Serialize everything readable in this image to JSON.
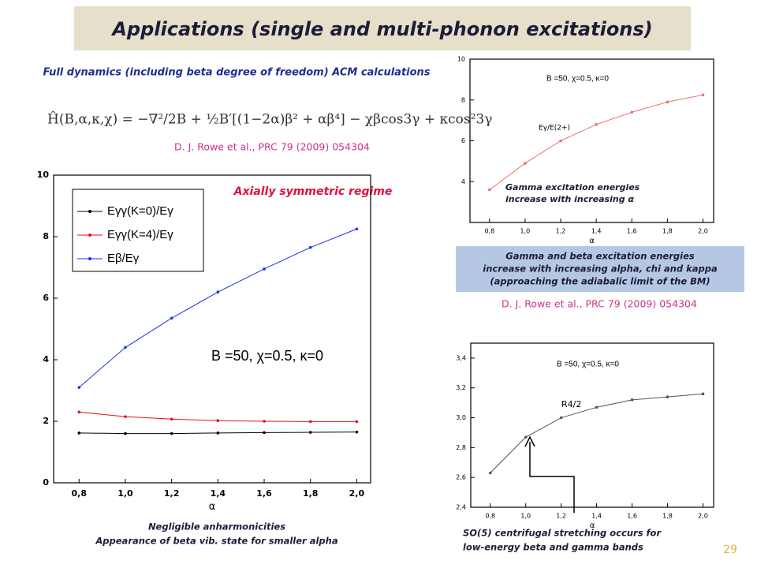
{
  "title": "Applications (single and multi-phonon excitations)",
  "subtitle": "Full dynamics (including beta degree of freedom) ACM calculations",
  "formula": "Ĥ(B,α,κ,χ) = −∇²/2B + ½B′[(1−2α)β² + αβ⁴] − χβcos3γ + κcos²3γ",
  "reference_1": "D. J. Rowe et al., PRC 79  (2009) 054304",
  "regime": "Axially symmetric regime",
  "note_box": [
    "Gamma and  beta excitation energies",
    "increase with increasing  alpha, chi and kappa",
    "(approaching the adiabalic limit of the BM)"
  ],
  "reference_2": "D. J. Rowe et al., PRC 79  (2009) 054304",
  "caption_left": [
    "Negligible  anharmonicities",
    "Appearance of beta vib. state for smaller alpha"
  ],
  "caption_right": [
    "SO(5) centrifugal stretching occurs for",
    "low-energy beta and gamma bands"
  ],
  "page_number": "29",
  "chart_data": [
    {
      "type": "line",
      "xlabel": "α",
      "annotation": "B =50, χ=0.5, κ=0",
      "x": [
        0.8,
        1.0,
        1.2,
        1.4,
        1.6,
        1.8,
        2.0
      ],
      "xlim": [
        0.69,
        2.06
      ],
      "xticks": [
        {
          "value": 0.8,
          "label": "0,8"
        },
        {
          "value": 1.0,
          "label": "1,0"
        },
        {
          "value": 1.2,
          "label": "1,2"
        },
        {
          "value": 1.4,
          "label": "1,4"
        },
        {
          "value": 1.6,
          "label": "1,6"
        },
        {
          "value": 1.8,
          "label": "1,8"
        },
        {
          "value": 2.0,
          "label": "2,0"
        }
      ],
      "ylim": [
        0,
        10
      ],
      "yticks": [
        0,
        2,
        4,
        6,
        8,
        10
      ],
      "series": [
        {
          "name": "Eγγ(K=0)/Eγ",
          "color": "#000000",
          "values": [
            1.62,
            1.6,
            1.6,
            1.62,
            1.63,
            1.64,
            1.65
          ]
        },
        {
          "name": "Eγγ(K=4)/Eγ",
          "color": "#e8101a",
          "values": [
            2.3,
            2.15,
            2.07,
            2.02,
            2.0,
            1.99,
            1.99
          ]
        },
        {
          "name": "Eβ/Eγ",
          "color": "#1a2ff0",
          "values": [
            3.1,
            4.4,
            5.35,
            6.2,
            6.95,
            7.65,
            8.25
          ]
        }
      ]
    },
    {
      "type": "line",
      "xlabel": "α",
      "annotation": "B =50, χ=0.5, κ=0",
      "curve_label": "Eγ/E(2+)",
      "caption": [
        "Gamma excitation energies",
        "increase with increasing α"
      ],
      "x": [
        0.8,
        1.0,
        1.2,
        1.4,
        1.6,
        1.8,
        2.0
      ],
      "xlim": [
        0.69,
        2.06
      ],
      "xticks": [
        {
          "value": 0.8,
          "label": "0,8"
        },
        {
          "value": 1.0,
          "label": "1,0"
        },
        {
          "value": 1.2,
          "label": "1,2"
        },
        {
          "value": 1.4,
          "label": "1,4"
        },
        {
          "value": 1.6,
          "label": "1,6"
        },
        {
          "value": 1.8,
          "label": "1,8"
        },
        {
          "value": 2.0,
          "label": "2,0"
        }
      ],
      "ylim": [
        2,
        10
      ],
      "yticks": [
        4,
        6,
        8,
        10
      ],
      "series": [
        {
          "color": "#f07070",
          "values": [
            3.6,
            4.9,
            6.0,
            6.8,
            7.4,
            7.9,
            8.25
          ]
        }
      ]
    },
    {
      "type": "line",
      "xlabel": "α",
      "annotation": "B =50, χ=0.5, κ=0",
      "curve_label": "R4/2",
      "x": [
        0.8,
        1.0,
        1.2,
        1.4,
        1.6,
        1.8,
        2.0
      ],
      "xlim": [
        0.69,
        2.06
      ],
      "xticks": [
        {
          "value": 0.8,
          "label": "0,8"
        },
        {
          "value": 1.0,
          "label": "1,0"
        },
        {
          "value": 1.2,
          "label": "1,2"
        },
        {
          "value": 1.4,
          "label": "1,4"
        },
        {
          "value": 1.6,
          "label": "1,6"
        },
        {
          "value": 1.8,
          "label": "1,8"
        },
        {
          "value": 2.0,
          "label": "2,0"
        }
      ],
      "ylim": [
        2.4,
        3.5
      ],
      "yticks": [
        {
          "value": 2.4,
          "label": "2,4"
        },
        {
          "value": 2.6,
          "label": "2,6"
        },
        {
          "value": 2.8,
          "label": "2,8"
        },
        {
          "value": 3.0,
          "label": "3,0"
        },
        {
          "value": 3.2,
          "label": "3,2"
        },
        {
          "value": 3.4,
          "label": "3,4"
        }
      ],
      "series": [
        {
          "color": "#555555",
          "values": [
            2.63,
            2.87,
            3.0,
            3.07,
            3.12,
            3.14,
            3.16
          ]
        }
      ]
    }
  ]
}
